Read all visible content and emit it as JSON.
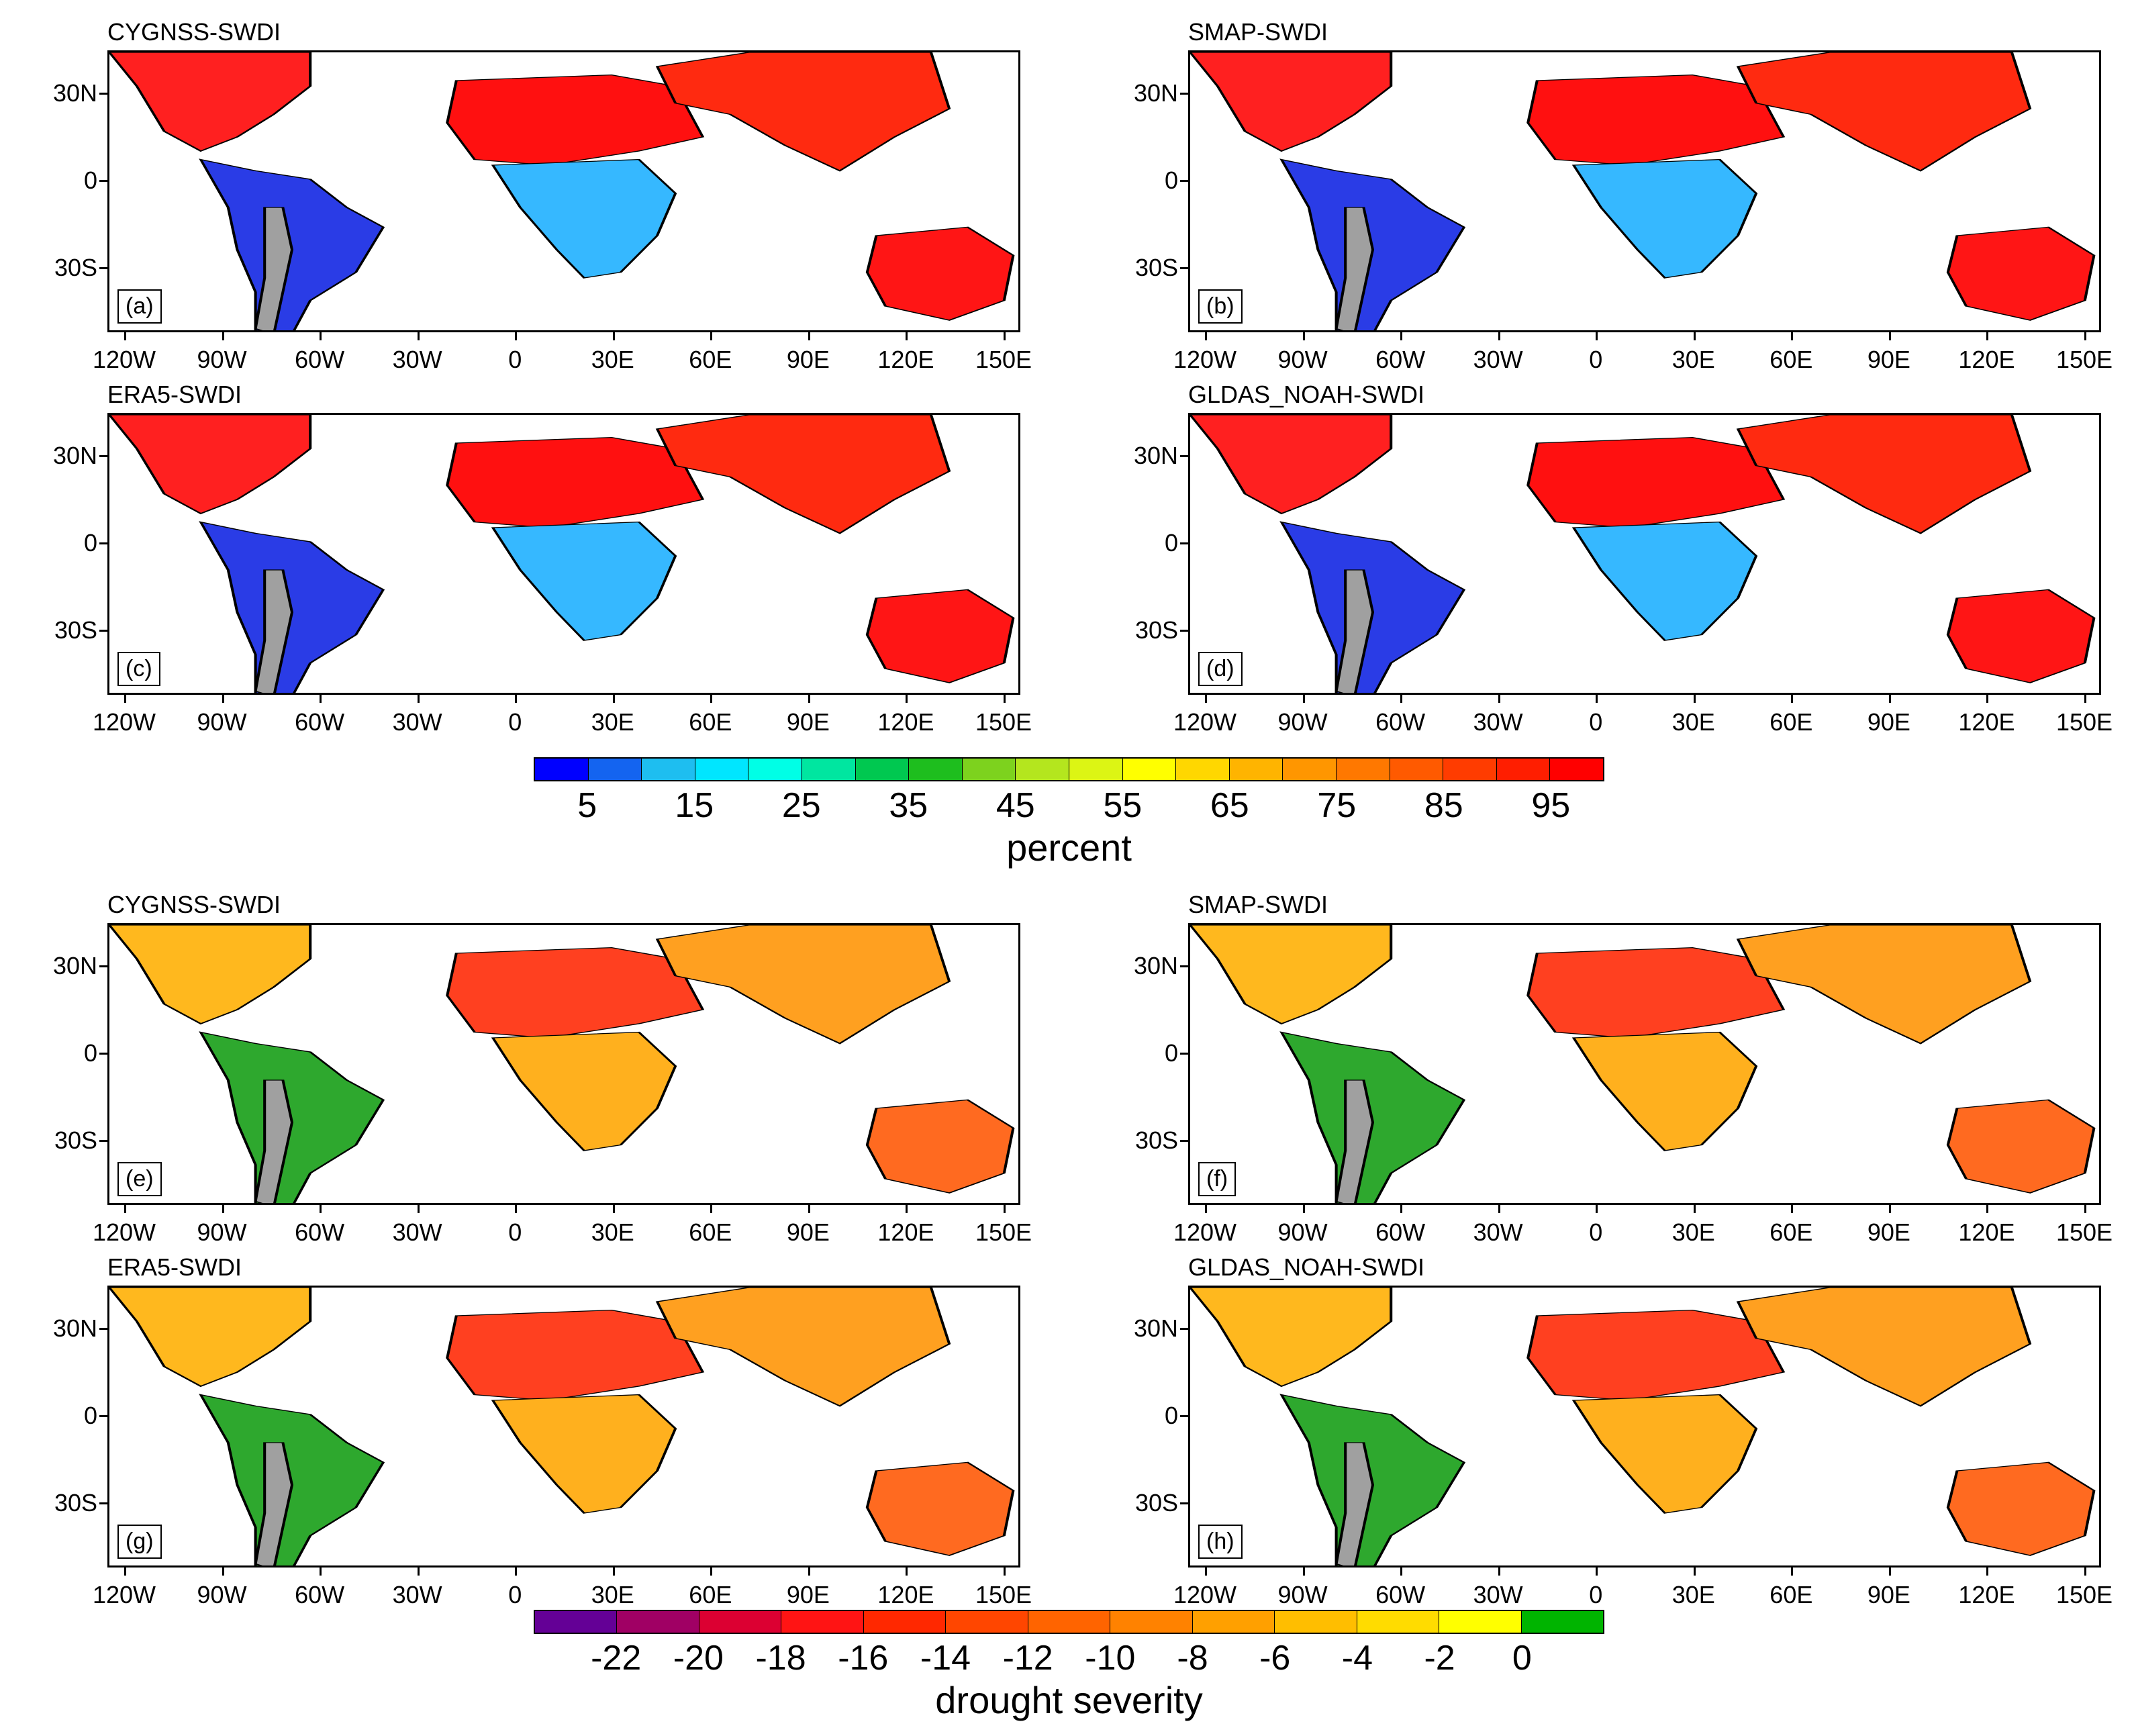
{
  "panels": [
    {
      "id": "a",
      "title": "CYGNSS-SWDI",
      "label": "(a)",
      "scheme": "percent",
      "xticks": [
        "120W",
        "90W",
        "60W",
        "30W",
        "0",
        "30E",
        "60E",
        "90E",
        "120E",
        "150E"
      ]
    },
    {
      "id": "b",
      "title": "SMAP-SWDI",
      "label": "(b)",
      "scheme": "percent",
      "xticks": [
        "120W",
        "90W",
        "60W",
        "30W",
        "0",
        "30E",
        "60E",
        "90E",
        "120E",
        "150E"
      ]
    },
    {
      "id": "c",
      "title": "ERA5-SWDI",
      "label": "(c)",
      "scheme": "percent",
      "xticks": [
        "120W",
        "90W",
        "60W",
        "30W",
        "0",
        "30E",
        "60E",
        "90E",
        "120E",
        "150E"
      ]
    },
    {
      "id": "d",
      "title": "GLDAS_NOAH-SWDI",
      "label": "(d)",
      "scheme": "percent",
      "xticks": [
        "120W",
        "90W",
        "60W",
        "30W",
        "0",
        "30E",
        "60E",
        "90E",
        "120E",
        "150E"
      ]
    },
    {
      "id": "e",
      "title": "CYGNSS-SWDI",
      "label": "(e)",
      "scheme": "severity",
      "xticks": [
        "120W",
        "90W",
        "60W",
        "30W",
        "0",
        "30E",
        "60E",
        "90E",
        "120E",
        "150E"
      ]
    },
    {
      "id": "f",
      "title": "SMAP-SWDI",
      "label": "(f)",
      "scheme": "severity",
      "xticks": [
        "120W",
        "90W",
        "60W",
        "30W",
        "0",
        "30E",
        "60E",
        "90E",
        "120E",
        "150E"
      ]
    },
    {
      "id": "g",
      "title": "ERA5-SWDI",
      "label": "(g)",
      "scheme": "severity",
      "xticks": [
        "120W",
        "90W",
        "60W",
        "30W",
        "0",
        "30E",
        "60E",
        "90E",
        "120E",
        "150E"
      ]
    },
    {
      "id": "h",
      "title": "GLDAS_NOAH-SWDI",
      "label": "(h)",
      "scheme": "severity",
      "xticks": [
        "120W",
        "90W",
        "60W",
        "30W",
        "0",
        "30E",
        "60E",
        "90E",
        "120E",
        "150E"
      ]
    }
  ],
  "yticks": [
    "30N",
    "0",
    "30S"
  ],
  "colorbar_percent": {
    "title": "percent",
    "labels": [
      "5",
      "15",
      "25",
      "35",
      "45",
      "55",
      "65",
      "75",
      "85",
      "95"
    ],
    "colors": [
      "#0000ff",
      "#1464f0",
      "#1ebef0",
      "#00e6ff",
      "#00ffe6",
      "#00e6a0",
      "#00c850",
      "#1ebe1e",
      "#7dd21e",
      "#b4e61e",
      "#dcf514",
      "#ffff00",
      "#ffd700",
      "#ffb400",
      "#ff9600",
      "#ff7800",
      "#ff5a00",
      "#ff3c00",
      "#ff1e00",
      "#ff0000"
    ]
  },
  "colorbar_severity": {
    "title": "drought severity",
    "labels": [
      "-22",
      "-20",
      "-18",
      "-16",
      "-14",
      "-12",
      "-10",
      "-8",
      "-6",
      "-4",
      "-2",
      "0"
    ],
    "colors": [
      "#640096",
      "#a00064",
      "#dc0032",
      "#ff1414",
      "#ff2800",
      "#ff4600",
      "#ff6400",
      "#ff8200",
      "#ffa000",
      "#ffbe00",
      "#ffdc00",
      "#ffff00",
      "#00b400"
    ]
  },
  "map_colors": {
    "percent": {
      "americas": "#2a3ce6",
      "north_am": "#ff2020",
      "africa_n": "#ff1010",
      "africa_s": "#36b8ff",
      "asia": "#ff2a10",
      "australia": "#ff1515",
      "missing": "#a0a0a0"
    },
    "severity": {
      "americas": "#2ea82e",
      "north_am": "#ffb81e",
      "africa_n": "#ff4020",
      "africa_s": "#ffb01e",
      "asia": "#ffa020",
      "australia": "#ff6a20",
      "missing": "#a0a0a0"
    }
  }
}
